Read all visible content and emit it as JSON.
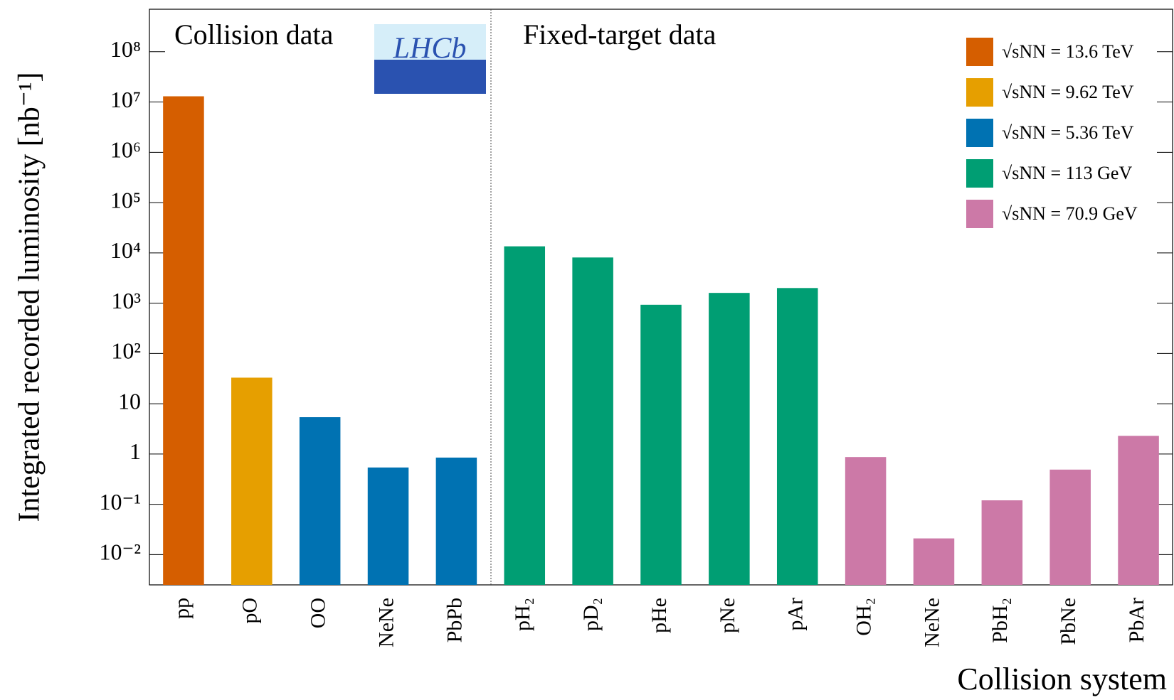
{
  "chart_data": {
    "type": "bar",
    "log_scale": true,
    "y_label": "Integrated recorded luminosity [nb⁻¹]",
    "x_label": "Collision system",
    "annotations": [
      "Collision data",
      "Fixed-target data",
      "LHCb"
    ],
    "categories": [
      "pp",
      "pO",
      "OO",
      "NeNe",
      "PbPb",
      "pH₂",
      "pD₂",
      "pHe",
      "pNe",
      "pAr",
      "OH₂",
      "NeNe",
      "PbH₂",
      "PbNe",
      "PbAr"
    ],
    "series": [
      {
        "name": "√sNN = 13.6 TeV",
        "color": "#d55e00",
        "values": [
          13000000,
          null,
          null,
          null,
          null,
          null,
          null,
          null,
          null,
          null,
          null,
          null,
          null,
          null,
          null
        ]
      },
      {
        "name": "√sNN = 9.62 TeV",
        "color": "#e69f00",
        "values": [
          null,
          33,
          null,
          null,
          null,
          null,
          null,
          null,
          null,
          null,
          null,
          null,
          null,
          null,
          null
        ]
      },
      {
        "name": "√sNN = 5.36 TeV",
        "color": "#0072b2",
        "values": [
          null,
          null,
          5.4,
          0.54,
          0.85,
          null,
          null,
          null,
          null,
          null,
          null,
          null,
          null,
          null,
          null
        ]
      },
      {
        "name": "√sNN = 113 GeV",
        "color": "#009e73",
        "values": [
          null,
          null,
          null,
          null,
          null,
          13500,
          8100,
          930,
          1600,
          2000,
          null,
          null,
          null,
          null,
          null
        ]
      },
      {
        "name": "√sNN = 70.9 GeV",
        "color": "#cc79a7",
        "values": [
          null,
          null,
          null,
          null,
          null,
          null,
          null,
          null,
          null,
          null,
          0.87,
          0.021,
          0.12,
          0.49,
          2.3
        ]
      }
    ],
    "ylim": [
      0.0025,
      700000000
    ],
    "yticks": [
      {
        "value": 0.01,
        "label": "10⁻²"
      },
      {
        "value": 0.1,
        "label": "10⁻¹"
      },
      1,
      10,
      {
        "value": 100,
        "label": "10²"
      },
      {
        "value": 1000,
        "label": "10³"
      },
      {
        "value": 10000,
        "label": "10⁴"
      },
      {
        "value": 100000,
        "label": "10⁵"
      },
      {
        "value": 1000000,
        "label": "10⁶"
      },
      {
        "value": 10000000,
        "label": "10⁷"
      },
      {
        "value": 100000000,
        "label": "10⁸"
      }
    ],
    "legend": "upper right",
    "grid": false
  }
}
